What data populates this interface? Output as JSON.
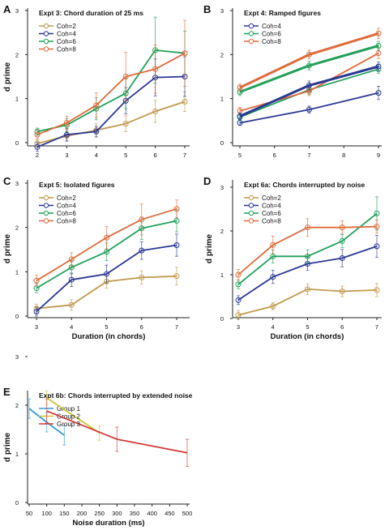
{
  "figure": {
    "panel_letters": [
      "A",
      "B",
      "C",
      "D",
      "E"
    ]
  },
  "chart_data": [
    {
      "panel": "A",
      "type": "line",
      "title": "Expt 3: Chord duration of 25 ms",
      "xlabel": "",
      "ylabel": "d prime",
      "x": [
        2,
        3,
        4,
        5,
        6,
        7
      ],
      "xticks": [
        "2",
        "3",
        "4",
        "5",
        "6",
        "7"
      ],
      "xlim": [
        2,
        7
      ],
      "ylim": [
        0,
        3
      ],
      "yticks": [
        "0",
        "1",
        "2",
        "3"
      ],
      "legend_position": "top-left",
      "series": [
        {
          "name": "Coh=2",
          "color": "#c19a4e",
          "values": [
            -0.02,
            0.15,
            0.28,
            0.43,
            0.71,
            0.93
          ],
          "err": [
            0.08,
            0.12,
            0.15,
            0.18,
            0.25,
            0.22
          ]
        },
        {
          "name": "Coh=4",
          "color": "#2b3894",
          "values": [
            -0.1,
            0.18,
            0.25,
            0.95,
            1.48,
            1.5
          ],
          "err": [
            0.1,
            0.14,
            0.12,
            0.3,
            0.42,
            0.45
          ]
        },
        {
          "name": "Coh=6",
          "color": "#21a05a",
          "values": [
            0.25,
            0.4,
            0.77,
            1.12,
            2.1,
            2.03
          ],
          "err": [
            0.08,
            0.15,
            0.25,
            0.35,
            0.75,
            0.5
          ]
        },
        {
          "name": "Coh=8",
          "color": "#de6b3b",
          "values": [
            0.18,
            0.45,
            0.85,
            1.5,
            1.67,
            2.03
          ],
          "err": [
            0.1,
            0.15,
            0.28,
            0.55,
            0.55,
            0.75
          ]
        }
      ]
    },
    {
      "panel": "B",
      "type": "line",
      "title": "Expt 4: Ramped figures",
      "xlabel": "",
      "ylabel": "",
      "x": [
        5,
        7,
        9
      ],
      "xticks": [
        "5",
        "6",
        "7",
        "8",
        "9"
      ],
      "xlim": [
        5,
        9
      ],
      "ylim": [
        0,
        3
      ],
      "yticks": [
        "0",
        "1",
        "2",
        "3"
      ],
      "legend_position": "top-left",
      "series": [
        {
          "name": "Coh=4",
          "color": "#2b3894",
          "values": [
            0.45,
            0.75,
            1.13
          ],
          "err": [
            0.06,
            0.08,
            0.15
          ]
        },
        {
          "name": "Coh=6",
          "color": "#21a05a",
          "values": [
            0.58,
            1.2,
            1.67
          ],
          "err": [
            0.08,
            0.1,
            0.1
          ]
        },
        {
          "name": "Coh=8",
          "color": "#de6b3b",
          "values": [
            0.72,
            1.17,
            2.03
          ],
          "err": [
            0.08,
            0.1,
            0.12
          ]
        },
        {
          "name": "",
          "color": "#2b3894",
          "values": [
            0.6,
            1.3,
            1.73
          ],
          "err": [
            0.08,
            0.1,
            0.1
          ],
          "thick": true
        },
        {
          "name": "",
          "color": "#21a05a",
          "values": [
            1.15,
            1.75,
            2.2
          ],
          "err": [
            0.08,
            0.1,
            0.1
          ],
          "thick": true
        },
        {
          "name": "",
          "color": "#de6b3b",
          "values": [
            1.25,
            2.0,
            2.48
          ],
          "err": [
            0.08,
            0.1,
            0.12
          ],
          "thick": true
        }
      ]
    },
    {
      "panel": "C",
      "type": "line",
      "title": "Expt 5: Isolated figures",
      "xlabel": "Duration (in chords)",
      "ylabel": "d prime",
      "x": [
        3,
        4,
        5,
        6,
        7
      ],
      "xticks": [
        "3",
        "4",
        "5",
        "6",
        "7"
      ],
      "xlim": [
        3,
        7
      ],
      "ylim": [
        0,
        3
      ],
      "yticks": [
        "0",
        "1",
        "2",
        "3"
      ],
      "legend_position": "top-left",
      "series": [
        {
          "name": "Coh=2",
          "color": "#c19a4e",
          "values": [
            0.17,
            0.25,
            0.78,
            0.87,
            0.9
          ],
          "err": [
            0.1,
            0.12,
            0.15,
            0.15,
            0.2
          ]
        },
        {
          "name": "Coh=4",
          "color": "#2b3894",
          "values": [
            0.1,
            0.82,
            0.95,
            1.48,
            1.6
          ],
          "err": [
            0.1,
            0.15,
            0.2,
            0.2,
            0.25
          ]
        },
        {
          "name": "Coh=6",
          "color": "#21a05a",
          "values": [
            0.63,
            1.1,
            1.45,
            1.98,
            2.15
          ],
          "err": [
            0.1,
            0.15,
            0.2,
            0.25,
            0.25
          ]
        },
        {
          "name": "Coh=8",
          "color": "#de6b3b",
          "values": [
            0.8,
            1.28,
            1.77,
            2.18,
            2.42
          ],
          "err": [
            0.12,
            0.15,
            0.25,
            0.35,
            0.2
          ]
        }
      ]
    },
    {
      "panel": "D",
      "type": "line",
      "title": "Expt 6a: Chords interrupted by noise",
      "xlabel": "Duration (in chords)",
      "ylabel": "d prime",
      "x": [
        3,
        4,
        5,
        6,
        7
      ],
      "xticks": [
        "3",
        "4",
        "5",
        "6",
        "7"
      ],
      "xlim": [
        3,
        7
      ],
      "ylim": [
        0,
        3
      ],
      "yticks": [
        "0",
        "1",
        "2",
        "3"
      ],
      "legend_position": "top-left",
      "series": [
        {
          "name": "Coh=2",
          "color": "#c19a4e",
          "values": [
            0.08,
            0.28,
            0.67,
            0.62,
            0.65
          ],
          "err": [
            0.1,
            0.08,
            0.12,
            0.12,
            0.15
          ]
        },
        {
          "name": "Coh=4",
          "color": "#2b3894",
          "values": [
            0.42,
            0.95,
            1.25,
            1.38,
            1.65
          ],
          "err": [
            0.1,
            0.15,
            0.15,
            0.2,
            0.25
          ]
        },
        {
          "name": "Coh=6",
          "color": "#21a05a",
          "values": [
            0.78,
            1.42,
            1.42,
            1.77,
            2.4
          ],
          "err": [
            0.1,
            0.15,
            0.15,
            0.15,
            0.38
          ]
        },
        {
          "name": "Coh=8",
          "color": "#de6b3b",
          "values": [
            1.0,
            1.68,
            2.08,
            2.08,
            2.1
          ],
          "err": [
            0.12,
            0.2,
            0.2,
            0.15,
            0.15
          ]
        }
      ]
    },
    {
      "panel": "E",
      "type": "line",
      "title": "Expt 6b: Chords interrupted by extended noise",
      "xlabel": "Noise duration (ms)",
      "ylabel": "d prime",
      "xticks": [
        "50",
        "100",
        "150",
        "200",
        "250",
        "300",
        "350",
        "400",
        "450",
        "500"
      ],
      "xlim": [
        50,
        500
      ],
      "ylim": [
        0,
        3
      ],
      "yticks": [
        "0",
        "1",
        "2",
        "3"
      ],
      "legend_position": "top-left",
      "series": [
        {
          "name": "Group 1",
          "color": "#2f9ad6",
          "x": [
            50,
            100,
            150
          ],
          "values": [
            1.93,
            1.65,
            1.38
          ],
          "err": [
            0.2,
            0.2,
            0.2
          ]
        },
        {
          "name": "Group 2",
          "color": "#c9c43a",
          "x": [
            100,
            250
          ],
          "values": [
            2.15,
            1.43
          ],
          "err": [
            0.15,
            0.15
          ]
        },
        {
          "name": "Group 3",
          "color": "#d13b3b",
          "x": [
            100,
            300,
            500
          ],
          "values": [
            1.88,
            1.3,
            1.02
          ],
          "err": [
            0.25,
            0.25,
            0.28
          ]
        }
      ]
    }
  ]
}
